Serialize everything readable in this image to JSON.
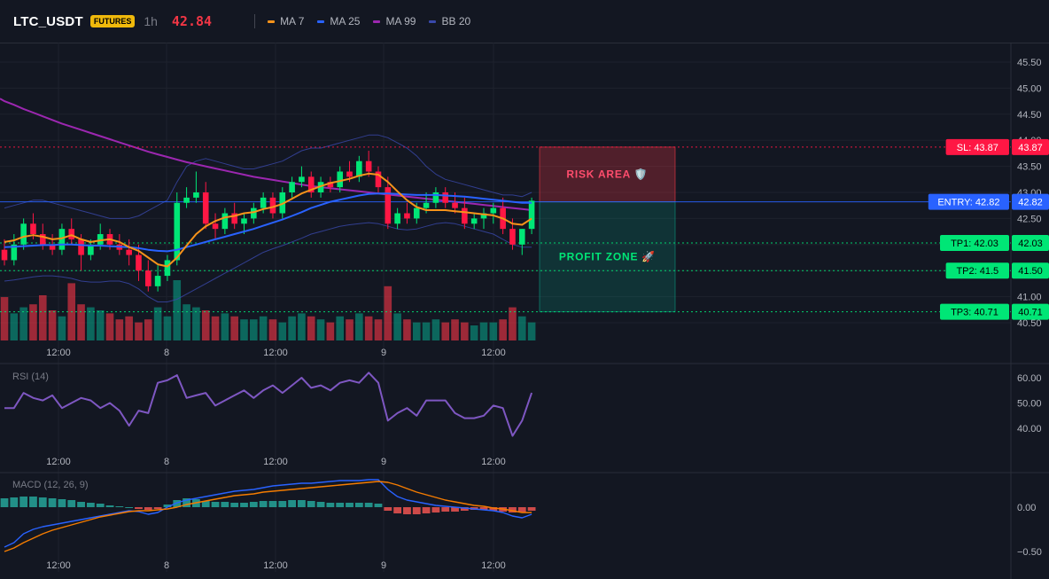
{
  "header": {
    "symbol": "LTC_USDT",
    "badge": "FUTURES",
    "timeframe": "1h",
    "price": "42.84",
    "indicators": [
      {
        "label": "MA 7",
        "color": "#f7931a"
      },
      {
        "label": "MA 25",
        "color": "#2962ff"
      },
      {
        "label": "MA 99",
        "color": "#9c27b0"
      },
      {
        "label": "BB 20",
        "color": "#3949ab"
      }
    ]
  },
  "colors": {
    "up": "#089981",
    "down": "#f23645",
    "up_bright": "#00e676",
    "down_bright": "#ff1744",
    "rsi": "#7e57c2",
    "macd": "#2962ff",
    "signal": "#f57c00"
  },
  "chart_data": [
    {
      "type": "candlestick",
      "name": "price",
      "ylim": [
        40.4,
        45.8
      ],
      "yticks": [
        "45.50",
        "45.00",
        "44.50",
        "44.00",
        "43.50",
        "43.00",
        "42.50",
        "42.00",
        "41.50",
        "41.00",
        "40.50"
      ],
      "xticks": [
        "12:00",
        "8",
        "12:00",
        "9",
        "12:00"
      ],
      "candles": [
        [
          41.9,
          42.1,
          41.6,
          41.7
        ],
        [
          41.7,
          42.2,
          41.6,
          42.0
        ],
        [
          42.0,
          42.5,
          41.9,
          42.4
        ],
        [
          42.4,
          42.6,
          42.1,
          42.2
        ],
        [
          42.2,
          42.4,
          41.9,
          42.0
        ],
        [
          42.0,
          42.2,
          41.8,
          41.9
        ],
        [
          41.9,
          42.4,
          41.8,
          42.3
        ],
        [
          42.3,
          42.5,
          42.0,
          42.1
        ],
        [
          42.1,
          42.2,
          41.5,
          41.8
        ],
        [
          41.8,
          42.1,
          41.7,
          42.0
        ],
        [
          42.0,
          42.4,
          41.9,
          42.2
        ],
        [
          42.2,
          42.3,
          41.9,
          42.0
        ],
        [
          42.0,
          42.2,
          41.8,
          41.9
        ],
        [
          41.9,
          42.1,
          41.6,
          41.8
        ],
        [
          41.8,
          42.0,
          41.3,
          41.5
        ],
        [
          41.5,
          41.7,
          41.1,
          41.2
        ],
        [
          41.2,
          41.6,
          41.1,
          41.4
        ],
        [
          41.4,
          41.8,
          41.3,
          41.7
        ],
        [
          41.7,
          43.0,
          41.6,
          42.8
        ],
        [
          42.8,
          43.1,
          42.7,
          42.9
        ],
        [
          42.9,
          43.4,
          42.8,
          43.0
        ],
        [
          43.0,
          43.2,
          42.3,
          42.4
        ],
        [
          42.4,
          42.6,
          42.1,
          42.3
        ],
        [
          42.3,
          42.7,
          42.2,
          42.6
        ],
        [
          42.6,
          42.8,
          42.3,
          42.4
        ],
        [
          42.4,
          42.6,
          42.2,
          42.5
        ],
        [
          42.5,
          42.8,
          42.4,
          42.7
        ],
        [
          42.7,
          43.0,
          42.6,
          42.9
        ],
        [
          42.9,
          43.0,
          42.5,
          42.6
        ],
        [
          42.6,
          43.1,
          42.5,
          43.0
        ],
        [
          43.0,
          43.3,
          42.9,
          43.2
        ],
        [
          43.2,
          43.5,
          43.1,
          43.3
        ],
        [
          43.3,
          43.4,
          42.9,
          43.0
        ],
        [
          43.0,
          43.3,
          42.9,
          43.2
        ],
        [
          43.2,
          43.3,
          43.0,
          43.1
        ],
        [
          43.1,
          43.5,
          43.0,
          43.4
        ],
        [
          43.4,
          43.6,
          43.2,
          43.3
        ],
        [
          43.3,
          43.7,
          43.2,
          43.6
        ],
        [
          43.6,
          43.8,
          43.3,
          43.4
        ],
        [
          43.4,
          43.5,
          43.0,
          43.1
        ],
        [
          43.1,
          43.3,
          42.3,
          42.4
        ],
        [
          42.4,
          42.7,
          42.3,
          42.6
        ],
        [
          42.6,
          42.8,
          42.4,
          42.5
        ],
        [
          42.5,
          42.8,
          42.4,
          42.7
        ],
        [
          42.7,
          43.0,
          42.6,
          42.8
        ],
        [
          42.8,
          43.1,
          42.7,
          43.0
        ],
        [
          43.0,
          43.1,
          42.7,
          42.8
        ],
        [
          42.8,
          43.0,
          42.6,
          42.7
        ],
        [
          42.7,
          42.9,
          42.3,
          42.4
        ],
        [
          42.4,
          42.6,
          42.3,
          42.5
        ],
        [
          42.5,
          42.7,
          42.3,
          42.6
        ],
        [
          42.6,
          42.8,
          42.4,
          42.7
        ],
        [
          42.7,
          42.9,
          42.2,
          42.3
        ],
        [
          42.3,
          42.5,
          41.9,
          42.0
        ],
        [
          42.0,
          42.3,
          41.8,
          42.3
        ],
        [
          42.3,
          42.9,
          42.2,
          42.84
        ]
      ],
      "ma7": [
        42.05,
        42.08,
        42.15,
        42.18,
        42.15,
        42.1,
        42.12,
        42.18,
        42.1,
        42.05,
        42.08,
        42.1,
        42.05,
        41.95,
        41.88,
        41.75,
        41.62,
        41.58,
        41.75,
        41.98,
        42.2,
        42.35,
        42.45,
        42.52,
        42.55,
        42.6,
        42.62,
        42.68,
        42.72,
        42.78,
        42.88,
        42.98,
        43.05,
        43.12,
        43.18,
        43.22,
        43.26,
        43.32,
        43.36,
        43.34,
        43.2,
        43.02,
        42.85,
        42.72,
        42.66,
        42.66,
        42.66,
        42.64,
        42.62,
        42.6,
        42.58,
        42.56,
        42.5,
        42.4,
        42.38,
        42.5
      ],
      "ma25": [
        41.95,
        41.96,
        41.97,
        41.98,
        41.99,
        41.99,
        42.0,
        42.0,
        41.99,
        41.98,
        41.98,
        41.97,
        41.96,
        41.95,
        41.93,
        41.9,
        41.88,
        41.87,
        41.9,
        41.95,
        42.0,
        42.05,
        42.1,
        42.15,
        42.2,
        42.25,
        42.3,
        42.36,
        42.42,
        42.48,
        42.55,
        42.62,
        42.7,
        42.76,
        42.82,
        42.86,
        42.9,
        42.94,
        42.97,
        42.98,
        42.98,
        42.97,
        42.96,
        42.95,
        42.95,
        42.95,
        42.94,
        42.93,
        42.92,
        42.9,
        42.88,
        42.86,
        42.84,
        42.82,
        42.8,
        42.8
      ],
      "ma99": [
        44.75,
        44.68,
        44.6,
        44.53,
        44.46,
        44.39,
        44.32,
        44.26,
        44.2,
        44.14,
        44.08,
        44.02,
        43.96,
        43.9,
        43.84,
        43.78,
        43.73,
        43.68,
        43.63,
        43.58,
        43.54,
        43.5,
        43.46,
        43.42,
        43.38,
        43.34,
        43.3,
        43.27,
        43.24,
        43.21,
        43.18,
        43.15,
        43.12,
        43.1,
        43.08,
        43.06,
        43.04,
        43.02,
        43.0,
        42.98,
        42.96,
        42.94,
        42.92,
        42.9,
        42.88,
        42.86,
        42.84,
        42.82,
        42.8,
        42.78,
        42.76,
        42.74,
        42.72,
        42.7,
        42.68,
        42.66
      ],
      "bb_upper": [
        42.7,
        42.75,
        42.8,
        42.85,
        42.85,
        42.8,
        42.75,
        42.7,
        42.65,
        42.6,
        42.55,
        42.5,
        42.5,
        42.5,
        42.55,
        42.65,
        42.75,
        42.85,
        43.2,
        43.5,
        43.6,
        43.65,
        43.6,
        43.55,
        43.5,
        43.45,
        43.45,
        43.5,
        43.55,
        43.6,
        43.7,
        43.8,
        43.85,
        43.85,
        43.9,
        43.95,
        44.0,
        44.05,
        44.1,
        44.1,
        44.05,
        43.95,
        43.85,
        43.7,
        43.5,
        43.35,
        43.25,
        43.2,
        43.15,
        43.1,
        43.05,
        43.0,
        42.95,
        42.95,
        42.92,
        43.0
      ],
      "bb_lower": [
        41.3,
        41.32,
        41.35,
        41.38,
        41.4,
        41.4,
        41.38,
        41.35,
        41.3,
        41.28,
        41.28,
        41.3,
        41.3,
        41.25,
        41.15,
        41.0,
        40.9,
        40.9,
        40.95,
        41.05,
        41.15,
        41.25,
        41.35,
        41.45,
        41.55,
        41.65,
        41.75,
        41.85,
        41.92,
        41.98,
        42.05,
        42.12,
        42.2,
        42.25,
        42.3,
        42.35,
        42.38,
        42.4,
        42.42,
        42.4,
        42.35,
        42.3,
        42.28,
        42.3,
        42.35,
        42.4,
        42.42,
        42.4,
        42.35,
        42.3,
        42.25,
        42.2,
        42.1,
        42.0,
        41.95,
        41.95
      ],
      "volume": [
        0.72,
        0.45,
        0.55,
        0.6,
        0.75,
        0.5,
        0.4,
        0.95,
        0.6,
        0.55,
        0.5,
        0.45,
        0.35,
        0.4,
        0.3,
        0.35,
        0.55,
        0.4,
        1.0,
        0.6,
        0.55,
        0.5,
        0.4,
        0.45,
        0.4,
        0.35,
        0.35,
        0.4,
        0.35,
        0.3,
        0.4,
        0.45,
        0.4,
        0.35,
        0.3,
        0.4,
        0.35,
        0.45,
        0.4,
        0.35,
        0.9,
        0.45,
        0.35,
        0.3,
        0.3,
        0.35,
        0.3,
        0.35,
        0.3,
        0.25,
        0.3,
        0.3,
        0.35,
        0.55,
        0.4,
        0.3
      ],
      "levels": [
        {
          "label": "SL: 43.87",
          "axis_label": "43.87",
          "value": 43.87,
          "color": "#ff1744"
        },
        {
          "label": "ENTRY: 42.82",
          "axis_label": "42.82",
          "value": 42.82,
          "color": "#2962ff"
        },
        {
          "label": "TP1: 42.03",
          "axis_label": "42.03",
          "value": 42.03,
          "color": "#00e676"
        },
        {
          "label": "TP2: 41.5",
          "axis_label": "41.50",
          "value": 41.5,
          "color": "#00e676"
        },
        {
          "label": "TP3: 40.71",
          "axis_label": "40.71",
          "value": 40.71,
          "color": "#00e676"
        }
      ],
      "zones": [
        {
          "label": "RISK AREA 🛡️",
          "from": 42.82,
          "to": 43.87,
          "color": "#f23645"
        },
        {
          "label": "PROFIT ZONE 🚀",
          "from": 40.71,
          "to": 42.82,
          "color": "#089981"
        }
      ]
    },
    {
      "type": "line",
      "name": "RSI (14)",
      "ylim": [
        32,
        66
      ],
      "yticks": [
        "60.00",
        "50.00",
        "40.00"
      ],
      "values": [
        48,
        48,
        54,
        52,
        51,
        53,
        48,
        50,
        52,
        51,
        48,
        50,
        47,
        41,
        47,
        46,
        58,
        59,
        61,
        52,
        53,
        54,
        49,
        51,
        53,
        55,
        52,
        55,
        57,
        54,
        57,
        60,
        56,
        57,
        55,
        58,
        59,
        58,
        62,
        58,
        43,
        46,
        48,
        45,
        51,
        51,
        51,
        46,
        44,
        44,
        45,
        49,
        48,
        37,
        43,
        54
      ]
    },
    {
      "type": "bar",
      "name": "MACD (12, 26, 9)",
      "ylim": [
        -0.58,
        0.38
      ],
      "yticks": [
        "0.00",
        "−0.50"
      ],
      "histogram": [
        0.1,
        0.11,
        0.12,
        0.12,
        0.11,
        0.1,
        0.09,
        0.08,
        0.06,
        0.05,
        0.04,
        0.02,
        0.01,
        0.0,
        -0.02,
        -0.03,
        -0.02,
        0.03,
        0.08,
        0.1,
        0.09,
        0.07,
        0.06,
        0.06,
        0.05,
        0.05,
        0.06,
        0.07,
        0.07,
        0.07,
        0.08,
        0.08,
        0.07,
        0.06,
        0.05,
        0.05,
        0.05,
        0.05,
        0.05,
        0.04,
        -0.04,
        -0.07,
        -0.08,
        -0.08,
        -0.07,
        -0.06,
        -0.05,
        -0.05,
        -0.04,
        -0.03,
        -0.03,
        -0.04,
        -0.05,
        -0.06,
        -0.06,
        -0.04
      ],
      "macd": [
        -0.45,
        -0.4,
        -0.3,
        -0.25,
        -0.22,
        -0.2,
        -0.18,
        -0.16,
        -0.14,
        -0.12,
        -0.1,
        -0.08,
        -0.06,
        -0.04,
        -0.05,
        -0.08,
        -0.06,
        0.0,
        0.05,
        0.08,
        0.1,
        0.12,
        0.14,
        0.16,
        0.18,
        0.19,
        0.2,
        0.22,
        0.24,
        0.25,
        0.26,
        0.27,
        0.27,
        0.28,
        0.29,
        0.3,
        0.3,
        0.3,
        0.31,
        0.31,
        0.2,
        0.12,
        0.08,
        0.06,
        0.04,
        0.02,
        0.01,
        0.0,
        -0.01,
        -0.02,
        -0.03,
        -0.04,
        -0.06,
        -0.1,
        -0.12,
        -0.08
      ],
      "signal": [
        -0.5,
        -0.46,
        -0.4,
        -0.35,
        -0.3,
        -0.26,
        -0.23,
        -0.2,
        -0.17,
        -0.14,
        -0.11,
        -0.09,
        -0.07,
        -0.05,
        -0.04,
        -0.04,
        -0.03,
        -0.02,
        0.0,
        0.03,
        0.05,
        0.07,
        0.09,
        0.11,
        0.13,
        0.14,
        0.15,
        0.17,
        0.18,
        0.19,
        0.2,
        0.21,
        0.22,
        0.23,
        0.24,
        0.25,
        0.26,
        0.27,
        0.28,
        0.29,
        0.28,
        0.25,
        0.21,
        0.17,
        0.14,
        0.11,
        0.08,
        0.06,
        0.04,
        0.02,
        0.01,
        -0.01,
        -0.02,
        -0.04,
        -0.06,
        -0.06
      ]
    }
  ]
}
